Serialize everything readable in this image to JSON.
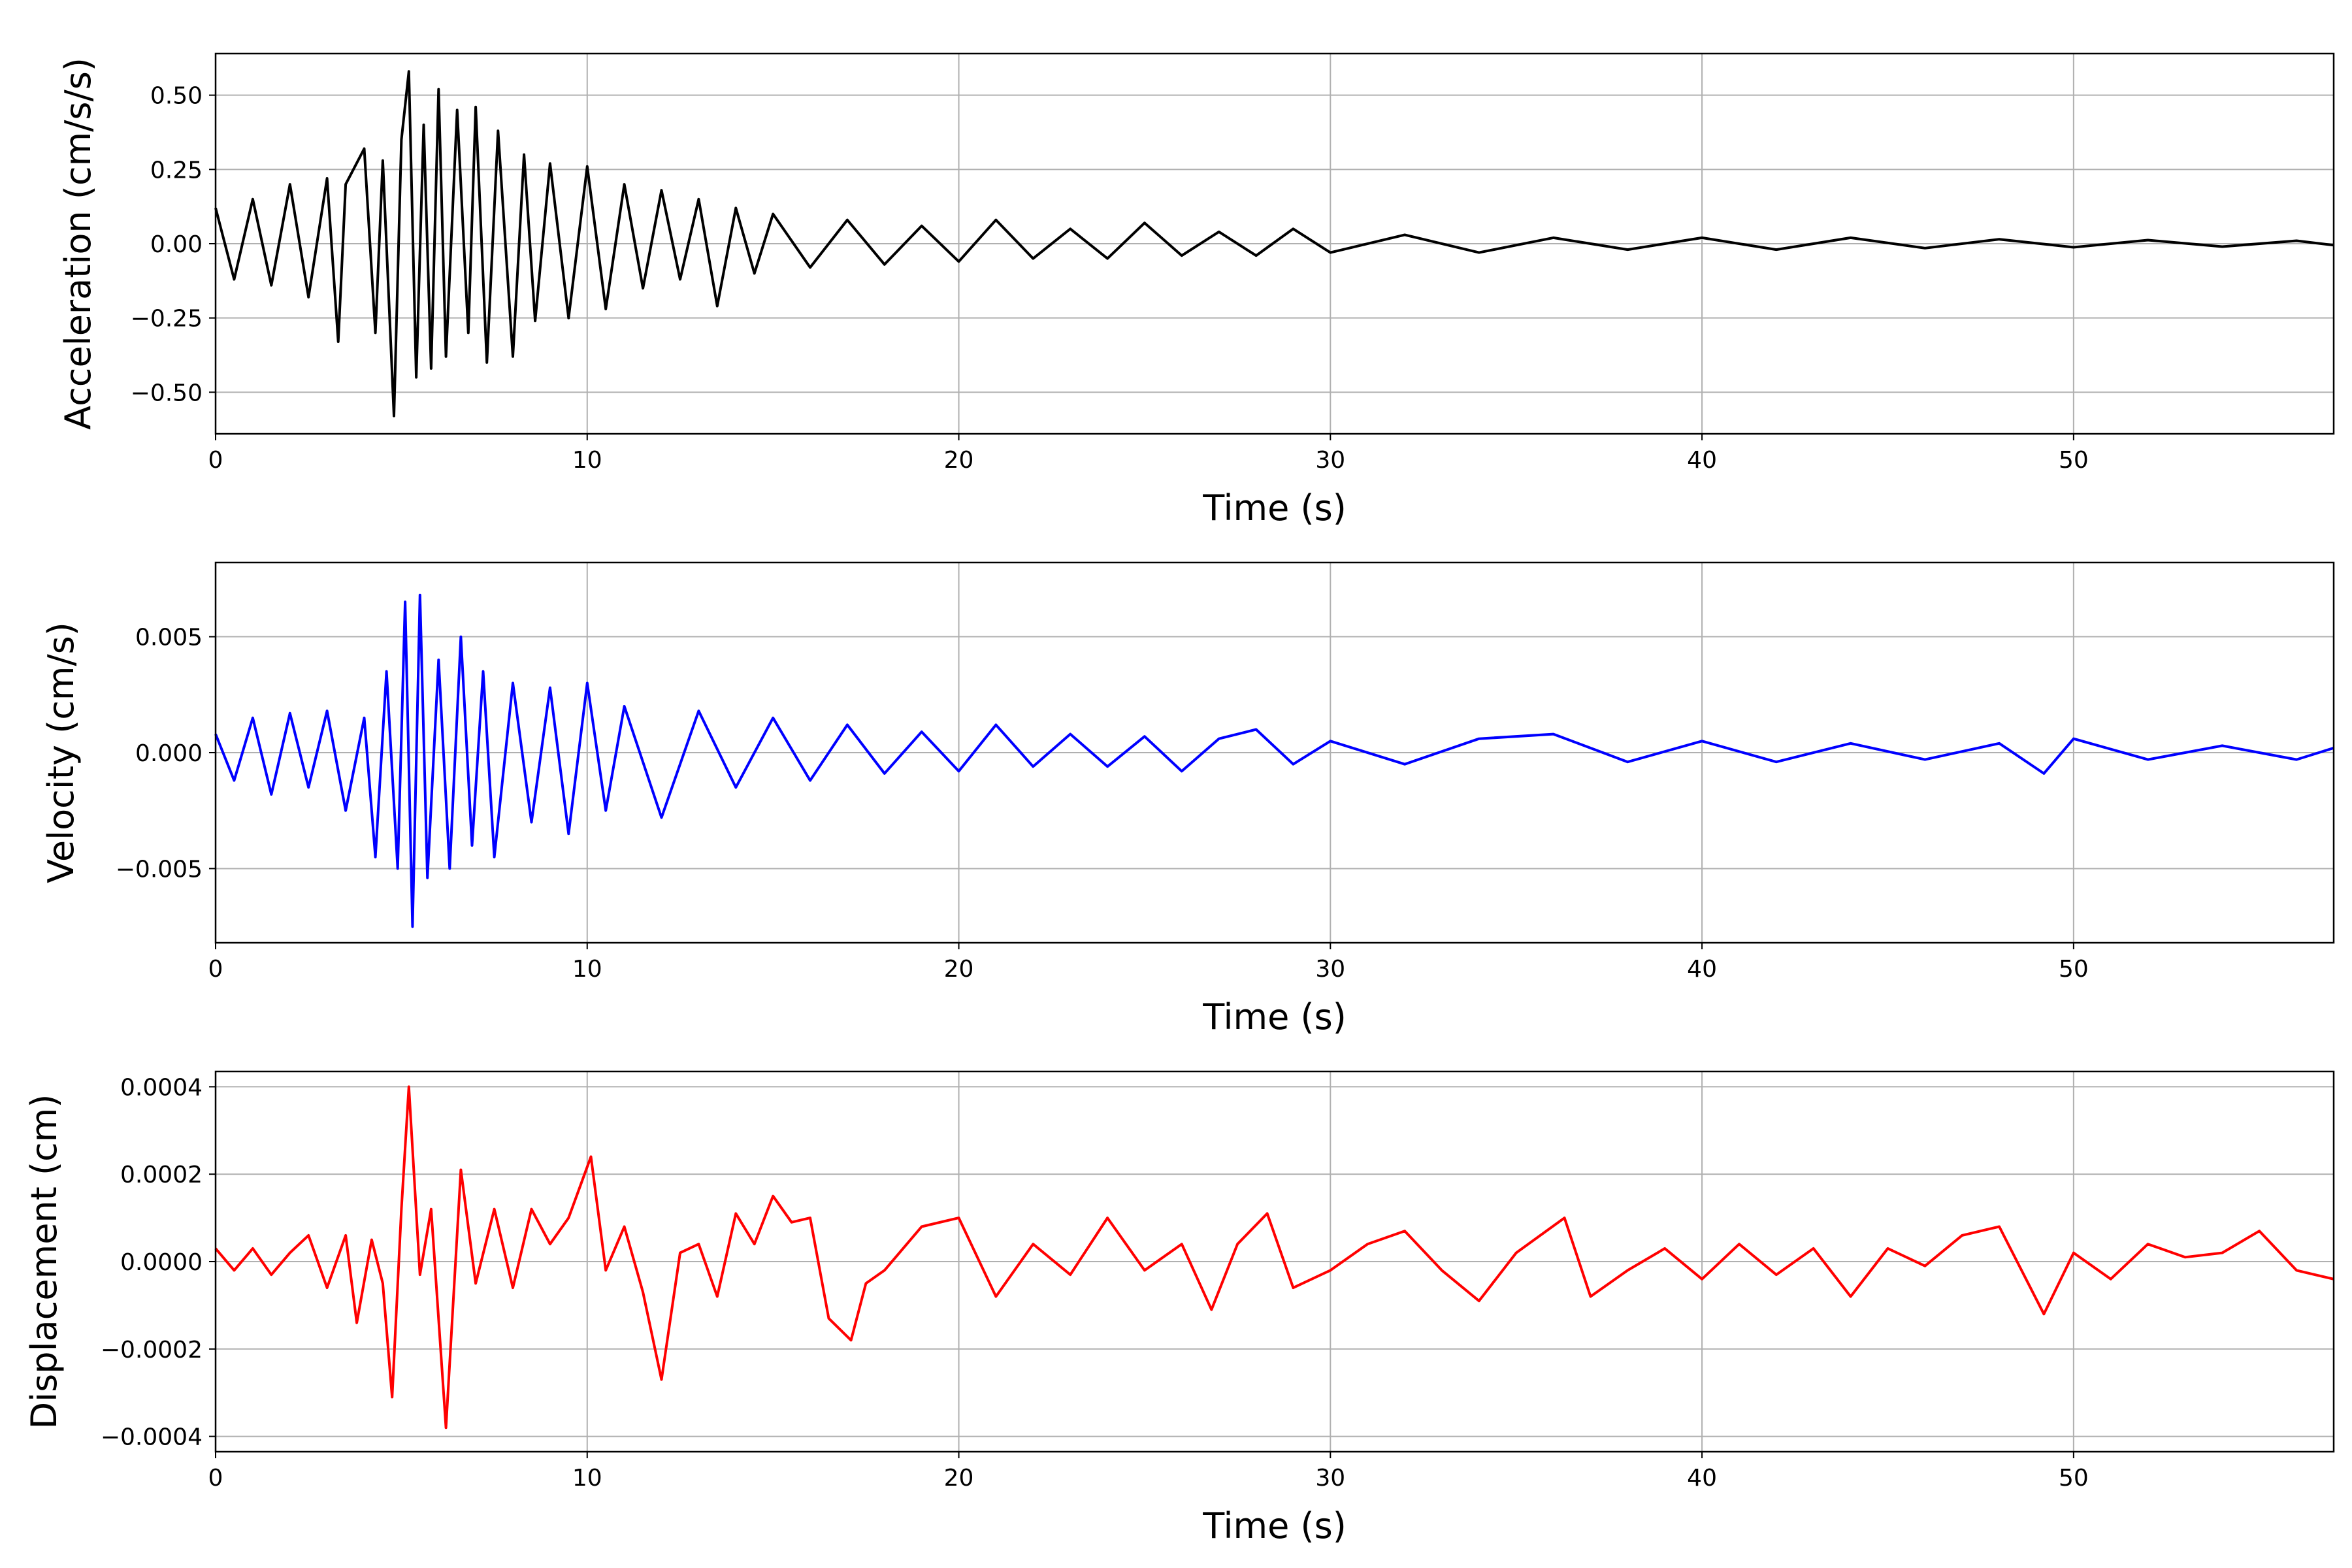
{
  "chart_data": [
    {
      "type": "line",
      "title": "",
      "xlabel": "Time (s)",
      "ylabel": "Acceleration (cm/s/s)",
      "xlim": [
        0,
        57
      ],
      "ylim": [
        -0.64,
        0.64
      ],
      "grid": true,
      "x_ticks": [
        0,
        10,
        20,
        30,
        40,
        50
      ],
      "x_tick_labels": [
        "0",
        "10",
        "20",
        "30",
        "40",
        "50"
      ],
      "y_ticks": [
        0.5,
        0.25,
        0.0,
        -0.25,
        -0.5
      ],
      "y_tick_labels": [
        "0.50",
        "0.25",
        "0.00",
        "−0.25",
        "−0.50"
      ],
      "series": [
        {
          "color": "#000000",
          "x": [
            0,
            0.5,
            1,
            1.5,
            2,
            2.5,
            3,
            3.3,
            3.5,
            4,
            4.3,
            4.5,
            4.8,
            5.0,
            5.2,
            5.4,
            5.6,
            5.8,
            6.0,
            6.2,
            6.5,
            6.8,
            7.0,
            7.3,
            7.6,
            8.0,
            8.3,
            8.6,
            9.0,
            9.5,
            10,
            10.5,
            11,
            11.5,
            12,
            12.5,
            13,
            13.5,
            14,
            14.5,
            15,
            16,
            17,
            18,
            19,
            20,
            21,
            22,
            23,
            24,
            25,
            26,
            27,
            28,
            29,
            30,
            32,
            34,
            36,
            38,
            40,
            42,
            44,
            46,
            48,
            50,
            52,
            54,
            56,
            57
          ],
          "y": [
            0.12,
            -0.12,
            0.15,
            -0.14,
            0.2,
            -0.18,
            0.22,
            -0.33,
            0.2,
            0.32,
            -0.3,
            0.28,
            -0.58,
            0.35,
            0.58,
            -0.45,
            0.4,
            -0.42,
            0.52,
            -0.38,
            0.45,
            -0.3,
            0.46,
            -0.4,
            0.38,
            -0.38,
            0.3,
            -0.26,
            0.27,
            -0.25,
            0.26,
            -0.22,
            0.2,
            -0.15,
            0.18,
            -0.12,
            0.15,
            -0.21,
            0.12,
            -0.1,
            0.1,
            -0.08,
            0.08,
            -0.07,
            0.06,
            -0.06,
            0.08,
            -0.05,
            0.05,
            -0.05,
            0.07,
            -0.04,
            0.04,
            -0.04,
            0.05,
            -0.03,
            0.03,
            -0.03,
            0.02,
            -0.02,
            0.02,
            -0.02,
            0.02,
            -0.015,
            0.015,
            -0.012,
            0.012,
            -0.01,
            0.01,
            -0.005
          ]
        }
      ]
    },
    {
      "type": "line",
      "title": "",
      "xlabel": "Time (s)",
      "ylabel": "Velocity (cm/s)",
      "xlim": [
        0,
        57
      ],
      "ylim": [
        -0.0082,
        0.0082
      ],
      "grid": true,
      "x_ticks": [
        0,
        10,
        20,
        30,
        40,
        50
      ],
      "x_tick_labels": [
        "0",
        "10",
        "20",
        "30",
        "40",
        "50"
      ],
      "y_ticks": [
        0.005,
        0.0,
        -0.005
      ],
      "y_tick_labels": [
        "0.005",
        "0.000",
        "−0.005"
      ],
      "series": [
        {
          "color": "#0000ff",
          "x": [
            0,
            0.5,
            1,
            1.5,
            2,
            2.5,
            3,
            3.5,
            4,
            4.3,
            4.6,
            4.9,
            5.1,
            5.3,
            5.5,
            5.7,
            6.0,
            6.3,
            6.6,
            6.9,
            7.2,
            7.5,
            8.0,
            8.5,
            9.0,
            9.5,
            10,
            10.5,
            11,
            12,
            13,
            14,
            15,
            16,
            17,
            18,
            19,
            20,
            21,
            22,
            23,
            24,
            25,
            26,
            27,
            28,
            29,
            30,
            32,
            34,
            36,
            38,
            40,
            42,
            44,
            46,
            48,
            49.2,
            50,
            52,
            54,
            56,
            57
          ],
          "y": [
            0.0008,
            -0.0012,
            0.0015,
            -0.0018,
            0.0017,
            -0.0015,
            0.0018,
            -0.0025,
            0.0015,
            -0.0045,
            0.0035,
            -0.005,
            0.0065,
            -0.0075,
            0.0068,
            -0.0054,
            0.004,
            -0.005,
            0.005,
            -0.004,
            0.0035,
            -0.0045,
            0.003,
            -0.003,
            0.0028,
            -0.0035,
            0.003,
            -0.0025,
            0.002,
            -0.0028,
            0.0018,
            -0.0015,
            0.0015,
            -0.0012,
            0.0012,
            -0.0009,
            0.0009,
            -0.0008,
            0.0012,
            -0.0006,
            0.0008,
            -0.0006,
            0.0007,
            -0.0008,
            0.0006,
            0.001,
            -0.0005,
            0.0005,
            -0.0005,
            0.0006,
            0.0008,
            -0.0004,
            0.0005,
            -0.0004,
            0.0004,
            -0.0003,
            0.0004,
            -0.0009,
            0.0006,
            -0.0003,
            0.0003,
            -0.0003,
            0.0002
          ]
        }
      ]
    },
    {
      "type": "line",
      "title": "",
      "xlabel": "Time (s)",
      "ylabel": "Displacement (cm)",
      "xlim": [
        0,
        57
      ],
      "ylim": [
        -0.000435,
        0.000435
      ],
      "grid": true,
      "x_ticks": [
        0,
        10,
        20,
        30,
        40,
        50
      ],
      "x_tick_labels": [
        "0",
        "10",
        "20",
        "30",
        "40",
        "50"
      ],
      "y_ticks": [
        0.0004,
        0.0002,
        0.0,
        -0.0002,
        -0.0004
      ],
      "y_tick_labels": [
        "0.0004",
        "0.0002",
        "0.0000",
        "−0.0002",
        "−0.0004"
      ],
      "series": [
        {
          "color": "#ff0000",
          "x": [
            0,
            0.5,
            1,
            1.5,
            2,
            2.5,
            3,
            3.5,
            3.8,
            4.2,
            4.5,
            4.75,
            5.0,
            5.2,
            5.5,
            5.8,
            6.2,
            6.6,
            7.0,
            7.5,
            8.0,
            8.5,
            9.0,
            9.5,
            10.1,
            10.5,
            11.0,
            11.5,
            12.0,
            12.5,
            13.0,
            13.5,
            14.0,
            14.5,
            15.0,
            15.5,
            16.0,
            16.5,
            17.1,
            17.5,
            18,
            19,
            20,
            21,
            22,
            23,
            24,
            25,
            26,
            26.8,
            27.5,
            28.3,
            29,
            30,
            31,
            32,
            33,
            34,
            35,
            36.3,
            37,
            38,
            39,
            40,
            41,
            42,
            43,
            44,
            45,
            46,
            47,
            48,
            49.2,
            50,
            51,
            52,
            53,
            54,
            55,
            56,
            57
          ],
          "y": [
            3e-05,
            -2e-05,
            3e-05,
            -3e-05,
            2e-05,
            6e-05,
            -6e-05,
            6e-05,
            -0.00014,
            5e-05,
            -5e-05,
            -0.00031,
            0.00012,
            0.0004,
            -3e-05,
            0.00012,
            -0.00038,
            0.00021,
            -5e-05,
            0.00012,
            -6e-05,
            0.00012,
            4e-05,
            0.0001,
            0.00024,
            -2e-05,
            8e-05,
            -7e-05,
            -0.00027,
            2e-05,
            4e-05,
            -8e-05,
            0.00011,
            4e-05,
            0.00015,
            9e-05,
            0.0001,
            -0.00013,
            -0.00018,
            -5e-05,
            -2e-05,
            8e-05,
            0.0001,
            -8e-05,
            4e-05,
            -3e-05,
            0.0001,
            -2e-05,
            4e-05,
            -0.00011,
            4e-05,
            0.00011,
            -6e-05,
            -2e-05,
            4e-05,
            7e-05,
            -2e-05,
            -9e-05,
            2e-05,
            0.0001,
            -8e-05,
            -2e-05,
            3e-05,
            -4e-05,
            4e-05,
            -3e-05,
            3e-05,
            -8e-05,
            3e-05,
            -1e-05,
            6e-05,
            8e-05,
            -0.00012,
            2e-05,
            -4e-05,
            4e-05,
            1e-05,
            2e-05,
            7e-05,
            -2e-05,
            -4e-05
          ]
        }
      ]
    }
  ]
}
